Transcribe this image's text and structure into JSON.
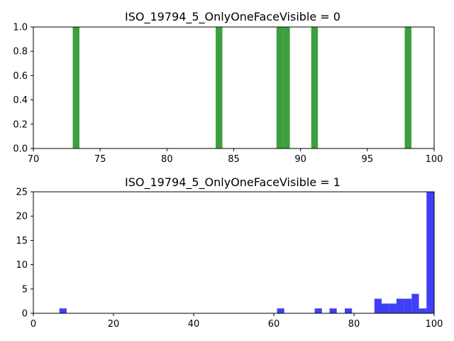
{
  "chart_data": [
    {
      "type": "bar",
      "title": "ISO_19794_5_OnlyOneFaceVisible = 0",
      "xlabel": "",
      "ylabel": "",
      "xlim": [
        70,
        100
      ],
      "ylim": [
        0,
        1.0
      ],
      "xticks": [
        "70",
        "75",
        "80",
        "85",
        "90",
        "95",
        "100"
      ],
      "yticks": [
        "0.0",
        "0.2",
        "0.4",
        "0.6",
        "0.8",
        "1.0"
      ],
      "color": "#3d9f3d",
      "bins": [
        {
          "start": 72.95,
          "end": 73.45,
          "value": 1
        },
        {
          "start": 83.65,
          "end": 84.15,
          "value": 1
        },
        {
          "start": 88.2,
          "end": 88.7,
          "value": 1
        },
        {
          "start": 88.7,
          "end": 89.2,
          "value": 1
        },
        {
          "start": 90.8,
          "end": 91.3,
          "value": 1
        },
        {
          "start": 97.8,
          "end": 98.3,
          "value": 1
        }
      ]
    },
    {
      "type": "bar",
      "title": "ISO_19794_5_OnlyOneFaceVisible = 1",
      "xlabel": "",
      "ylabel": "",
      "xlim": [
        0,
        100
      ],
      "ylim": [
        0,
        25
      ],
      "xticks": [
        "0",
        "20",
        "40",
        "60",
        "80",
        "100"
      ],
      "yticks": [
        "0",
        "5",
        "10",
        "15",
        "20",
        "25"
      ],
      "color": "#3f3ff5",
      "bins": [
        {
          "start": 6.5,
          "end": 8.3,
          "value": 1
        },
        {
          "start": 60.8,
          "end": 62.6,
          "value": 1
        },
        {
          "start": 70.2,
          "end": 72.0,
          "value": 1
        },
        {
          "start": 73.9,
          "end": 75.7,
          "value": 1
        },
        {
          "start": 77.7,
          "end": 79.5,
          "value": 1
        },
        {
          "start": 85.1,
          "end": 86.9,
          "value": 3
        },
        {
          "start": 86.9,
          "end": 88.8,
          "value": 2
        },
        {
          "start": 88.8,
          "end": 90.6,
          "value": 2
        },
        {
          "start": 90.6,
          "end": 92.5,
          "value": 3
        },
        {
          "start": 92.5,
          "end": 94.4,
          "value": 3
        },
        {
          "start": 94.4,
          "end": 96.2,
          "value": 4
        },
        {
          "start": 96.2,
          "end": 98.1,
          "value": 1
        },
        {
          "start": 98.1,
          "end": 100.0,
          "value": 25
        }
      ]
    }
  ]
}
